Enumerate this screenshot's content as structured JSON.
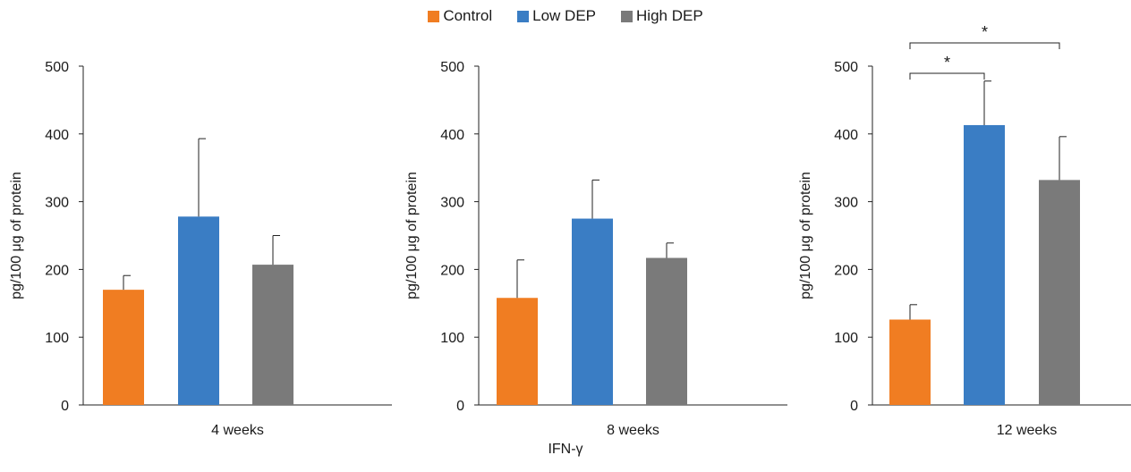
{
  "legend": [
    {
      "label": "Control",
      "color": "#F07D22"
    },
    {
      "label": "Low DEP",
      "color": "#3A7DC4"
    },
    {
      "label": "High DEP",
      "color": "#7A7A7A"
    }
  ],
  "footer_label": "IFN-γ",
  "chart_data": [
    {
      "type": "bar",
      "xlabel": "4 weeks",
      "ylabel": "pg/100 μg of protein",
      "ylim": [
        0,
        500
      ],
      "yticks": [
        0,
        100,
        200,
        300,
        400,
        500
      ],
      "categories": [
        "Control",
        "Low DEP",
        "High DEP"
      ],
      "values": [
        170,
        278,
        207
      ],
      "errors": [
        21,
        115,
        43
      ],
      "significance": []
    },
    {
      "type": "bar",
      "xlabel": "8 weeks",
      "ylabel": "pg/100 μg of protein",
      "ylim": [
        0,
        500
      ],
      "yticks": [
        0,
        100,
        200,
        300,
        400,
        500
      ],
      "categories": [
        "Control",
        "Low DEP",
        "High DEP"
      ],
      "values": [
        158,
        275,
        217
      ],
      "errors": [
        56,
        57,
        22
      ],
      "significance": []
    },
    {
      "type": "bar",
      "xlabel": "12 weeks",
      "ylabel": "pg/100 μg of protein",
      "ylim": [
        0,
        500
      ],
      "yticks": [
        0,
        100,
        200,
        300,
        400,
        500
      ],
      "categories": [
        "Control",
        "Low DEP",
        "High DEP"
      ],
      "values": [
        126,
        413,
        332
      ],
      "errors": [
        22,
        65,
        64
      ],
      "significance": [
        {
          "from": 0,
          "to": 1,
          "label": "*"
        },
        {
          "from": 0,
          "to": 2,
          "label": "*"
        }
      ]
    }
  ]
}
